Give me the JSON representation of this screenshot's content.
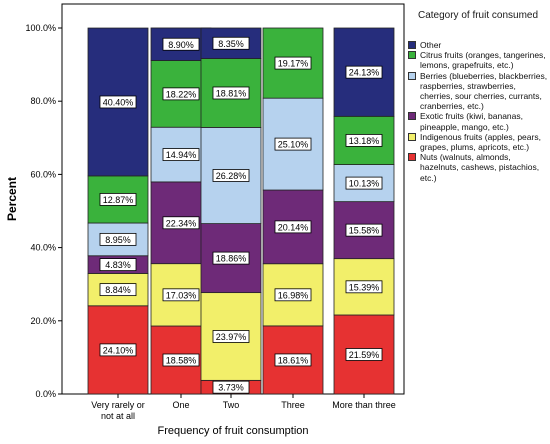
{
  "colors": {
    "Other": "#262d7c",
    "Citrus": "#3ab23c",
    "Berries": "#b6d2ee",
    "Exotic": "#6e2a78",
    "Indigenous": "#f2ef6a",
    "Nuts": "#e63232"
  },
  "chart_data": {
    "type": "bar",
    "stacked": true,
    "xlabel": "Frequency of fruit consumption",
    "ylabel": "Percent",
    "ylim": [
      0,
      100
    ],
    "yticks": [
      "0.0%",
      "20.0%",
      "40.0%",
      "60.0%",
      "80.0%",
      "100.0%"
    ],
    "legend_title": "Category of fruit consumed",
    "legend_position": "right",
    "categories": [
      "Very rarely or not at all",
      "One",
      "Two",
      "Three",
      "More than three"
    ],
    "series": [
      {
        "name": "Nuts (walnuts, almonds, hazelnuts, cashews, pistachios, etc.)",
        "color_key": "Nuts",
        "values": [
          24.1,
          18.58,
          3.73,
          18.61,
          21.59
        ],
        "labels": [
          "24.10%",
          "18.58%",
          "3.73%",
          "18.61%",
          "21.59%"
        ]
      },
      {
        "name": "Indigenous fruits (apples, pears, grapes, plums, apricots, etc.)",
        "color_key": "Indigenous",
        "values": [
          8.84,
          17.03,
          23.97,
          16.98,
          15.39
        ],
        "labels": [
          "8.84%",
          "17.03%",
          "23.97%",
          "16.98%",
          "15.39%"
        ]
      },
      {
        "name": "Exotic fruits (kiwi, bananas, pineapple, mango, etc.)",
        "color_key": "Exotic",
        "values": [
          4.83,
          22.34,
          18.86,
          20.14,
          15.58
        ],
        "labels": [
          "4.83%",
          "22.34%",
          "18.86%",
          "20.14%",
          "15.58%"
        ]
      },
      {
        "name": "Berries (blueberries, blackberries, raspberries, strawberries, cherries, sour cherries, currants, cranberries, etc.)",
        "color_key": "Berries",
        "values": [
          8.95,
          14.94,
          26.28,
          25.1,
          10.13
        ],
        "labels": [
          "8.95%",
          "14.94%",
          "26.28%",
          "25.10%",
          "10.13%"
        ]
      },
      {
        "name": "Citrus fruits (oranges, tangerines, lemons, grapefruits, etc.)",
        "color_key": "Citrus",
        "values": [
          12.87,
          18.22,
          18.81,
          19.17,
          13.18
        ],
        "labels": [
          "12.87%",
          "18.22%",
          "18.81%",
          "19.17%",
          "13.18%"
        ]
      },
      {
        "name": "Other",
        "color_key": "Other",
        "values": [
          40.4,
          8.9,
          8.35,
          0,
          24.13
        ],
        "labels": [
          "40.40%",
          "8.90%",
          "8.35%",
          "",
          "24.13%"
        ]
      }
    ]
  },
  "legend": {
    "title": "Category of fruit consumed",
    "items": [
      {
        "label": "Other",
        "color_key": "Other"
      },
      {
        "label": "Citrus fruits (oranges, tangerines, lemons, grapefruits, etc.)",
        "color_key": "Citrus"
      },
      {
        "label": "Berries (blueberries, blackberries, raspberries, strawberries, cherries, sour cherries, currants, cranberries, etc.)",
        "color_key": "Berries"
      },
      {
        "label": "Exotic fruits (kiwi, bananas, pineapple, mango, etc.)",
        "color_key": "Exotic"
      },
      {
        "label": "Indigenous fruits (apples, pears, grapes, plums, apricots, etc.)",
        "color_key": "Indigenous"
      },
      {
        "label": "Nuts (walnuts, almonds, hazelnuts, cashews, pistachios, etc.)",
        "color_key": "Nuts"
      }
    ]
  }
}
